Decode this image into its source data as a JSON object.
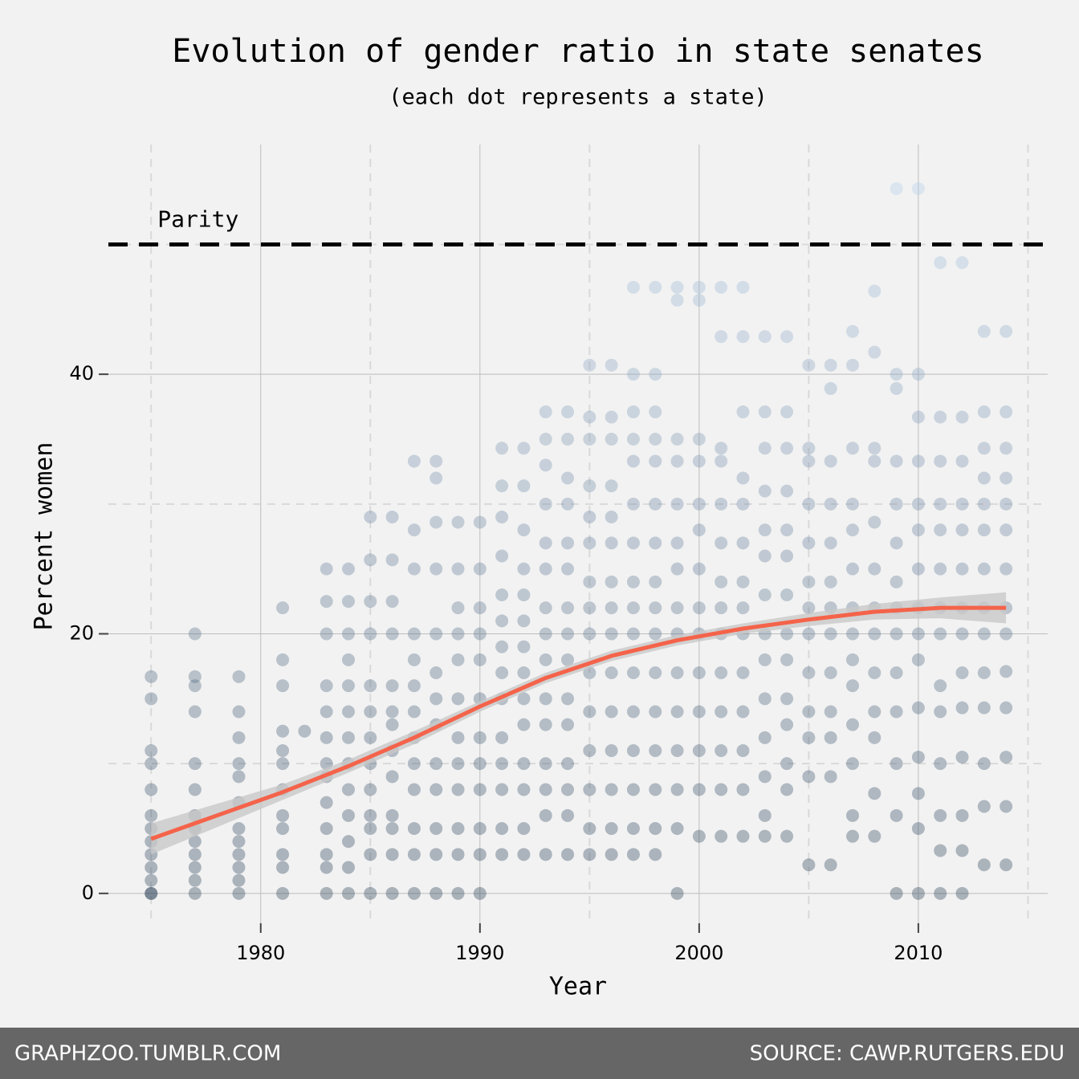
{
  "chart_data": {
    "type": "scatter",
    "title": "Evolution of gender ratio in state senates",
    "subtitle": "(each dot represents a state)",
    "x_label": "Year",
    "y_label": "Percent women",
    "xlim": [
      1973.05,
      2015.9
    ],
    "ylim": [
      -2.3,
      57.7
    ],
    "xticks": [
      1980,
      1990,
      2000,
      2010
    ],
    "yticks": [
      0,
      20,
      40
    ],
    "xminorticks": [
      1975,
      1985,
      1995,
      2005,
      2015
    ],
    "yminorticks": [
      10,
      30,
      50
    ],
    "grid": true,
    "reference_line": {
      "value": 50,
      "label": "Parity",
      "color": "#000000"
    },
    "series": [
      {
        "colors": [
          "#213850",
          "#b8d6f4"
        ],
        "x": [
          1975,
          1977,
          1979,
          1981,
          1982,
          1983,
          1984,
          1985,
          1986,
          1987,
          1988,
          1989,
          1990,
          1991,
          1992,
          1993,
          1994,
          1995,
          1996,
          1997,
          1998,
          1999,
          2000,
          2001,
          2002,
          2003,
          2004,
          2005,
          2006,
          2007,
          2008,
          2009,
          2010,
          2011,
          2012,
          2013,
          2014
        ],
        "values": [
          [
            0,
            0,
            1,
            2,
            3,
            4,
            5,
            6,
            8,
            10,
            11,
            15,
            16.7
          ],
          [
            0,
            1,
            2,
            3,
            4,
            5,
            6,
            8,
            10,
            14,
            16,
            16.7,
            20
          ],
          [
            0,
            1,
            2,
            3,
            4,
            5,
            7,
            9,
            10,
            12,
            14,
            16.7
          ],
          [
            0,
            2,
            3,
            5,
            6,
            8,
            10,
            11,
            12.5,
            16,
            18,
            22
          ],
          [
            12.5
          ],
          [
            0,
            2,
            3,
            5,
            7,
            9,
            10,
            12,
            14,
            16,
            20,
            22.5,
            25
          ],
          [
            0,
            2,
            4,
            6,
            8,
            10,
            12,
            14,
            16,
            18,
            20,
            22.5,
            25
          ],
          [
            0,
            3,
            5,
            6,
            8,
            10,
            12,
            14,
            16,
            20,
            22.5,
            25.7,
            29
          ],
          [
            0,
            3,
            5,
            6,
            9,
            11,
            13,
            14,
            16,
            20,
            22.5,
            25.7,
            29
          ],
          [
            0,
            3,
            5,
            8,
            10,
            12,
            14,
            16,
            18,
            20,
            25,
            28,
            33.3
          ],
          [
            0,
            3,
            5,
            8,
            10,
            13,
            15,
            17,
            20,
            25,
            28.6,
            32,
            33.3
          ],
          [
            0,
            3,
            5,
            8,
            10,
            12,
            15,
            18,
            20,
            22,
            25,
            28.6
          ],
          [
            0,
            3,
            5,
            8,
            10,
            12,
            15,
            18,
            20,
            22,
            25,
            28.6
          ],
          [
            3,
            5,
            8,
            10,
            12,
            15,
            17,
            19,
            21,
            23,
            26,
            29,
            31.4,
            34.3
          ],
          [
            3,
            5,
            8,
            10,
            13,
            15,
            17,
            19,
            21,
            23,
            25,
            28,
            31.4,
            34.3
          ],
          [
            3,
            6,
            8,
            10,
            13,
            15,
            18,
            20,
            22,
            25,
            27,
            30,
            33,
            35,
            37.1
          ],
          [
            3,
            6,
            8,
            10,
            13,
            15,
            18,
            20,
            22,
            25,
            27,
            30,
            32,
            35,
            37.1
          ],
          [
            3,
            5,
            8,
            11,
            14,
            17,
            20,
            22,
            24,
            27,
            29,
            31.4,
            35,
            36.7,
            40.7
          ],
          [
            3,
            5,
            8,
            11,
            14,
            17,
            20,
            22,
            24,
            27,
            29,
            31.4,
            35,
            36.7,
            40.7
          ],
          [
            3,
            5,
            8,
            11,
            14,
            17,
            20,
            22,
            24,
            27,
            30,
            33.3,
            35,
            37.1,
            40,
            46.7
          ],
          [
            3,
            5,
            8,
            11,
            14,
            17,
            20,
            22,
            24,
            27,
            30,
            33.3,
            35,
            37.1,
            40,
            46.7
          ],
          [
            0,
            5,
            8,
            11,
            14,
            17,
            20,
            22,
            25,
            27,
            30,
            33.3,
            35,
            45.7,
            46.7
          ],
          [
            4.4,
            8,
            11,
            14,
            17,
            20,
            22,
            25,
            28,
            30,
            33.3,
            35,
            45.7,
            46.7
          ],
          [
            4.4,
            8,
            11,
            14,
            17,
            20,
            22,
            24,
            27,
            30,
            33.3,
            34.3,
            42.9,
            46.7
          ],
          [
            4.4,
            8,
            11,
            14,
            17,
            20,
            22,
            24,
            27,
            30,
            32,
            37.1,
            42.9,
            46.7
          ],
          [
            4.4,
            6,
            9,
            12,
            15,
            18,
            20,
            23,
            26,
            28,
            31,
            34.3,
            37.1,
            42.9
          ],
          [
            4.4,
            8,
            10,
            13,
            15,
            18,
            20,
            23,
            26,
            28,
            31,
            34.3,
            37.1,
            42.9
          ],
          [
            2.2,
            9,
            12,
            14,
            17,
            20,
            22,
            24,
            27,
            30,
            33.3,
            34.3,
            40.7
          ],
          [
            2.2,
            9,
            12,
            14,
            17,
            20,
            22,
            24,
            27,
            30,
            33.3,
            38.9,
            40.7
          ],
          [
            4.4,
            6,
            10,
            13,
            16,
            18,
            20,
            22,
            25,
            28,
            30,
            34.3,
            40.7,
            43.3
          ],
          [
            4.4,
            7.7,
            12,
            14,
            17,
            20,
            22,
            25,
            28.6,
            33.3,
            34.3,
            41.7,
            46.4
          ],
          [
            0,
            6,
            10,
            14,
            17,
            20,
            22,
            24,
            27,
            30,
            33.3,
            38.9,
            40,
            54.3
          ],
          [
            0,
            5,
            7.7,
            10.5,
            14.3,
            18,
            20,
            22,
            25,
            28,
            30,
            33.3,
            36.7,
            40,
            54.3
          ],
          [
            0,
            3.3,
            6,
            10,
            14,
            16,
            20,
            22,
            25,
            28,
            30,
            33.3,
            36.7,
            48.6
          ],
          [
            0,
            3.3,
            6,
            10.5,
            14.3,
            17,
            20,
            22,
            25,
            28,
            30,
            33.3,
            36.7,
            48.6
          ],
          [
            2.2,
            6.7,
            10,
            14.3,
            17,
            20,
            22,
            25,
            28,
            30,
            32,
            34.3,
            37.1,
            43.3
          ],
          [
            2.2,
            6.7,
            10.5,
            14.3,
            17.1,
            20,
            22,
            25,
            28,
            30,
            32,
            34.3,
            37.1,
            43.3
          ]
        ]
      }
    ],
    "trend": {
      "color": "#f4634a",
      "band_color": "#c8c8c8",
      "x": [
        1975,
        1978,
        1981,
        1984,
        1987,
        1990,
        1993,
        1996,
        1999,
        2002,
        2005,
        2008,
        2011,
        2014
      ],
      "values": [
        4.2,
        6,
        7.8,
        9.8,
        12,
        14.4,
        16.6,
        18.3,
        19.5,
        20.4,
        21.1,
        21.7,
        22,
        22
      ],
      "lower": [
        3,
        5.1,
        7.2,
        9.3,
        11.5,
        14,
        16.2,
        17.9,
        19.1,
        20,
        20.6,
        21.1,
        21.2,
        20.8
      ],
      "upper": [
        5.4,
        6.9,
        8.4,
        10.3,
        12.5,
        14.8,
        17,
        18.7,
        19.9,
        20.8,
        21.6,
        22.3,
        22.8,
        23.2
      ]
    },
    "footer_left": "GRAPHZOO.TUMBLR.COM",
    "footer_right": "SOURCE: CAWP.RUTGERS.EDU"
  }
}
